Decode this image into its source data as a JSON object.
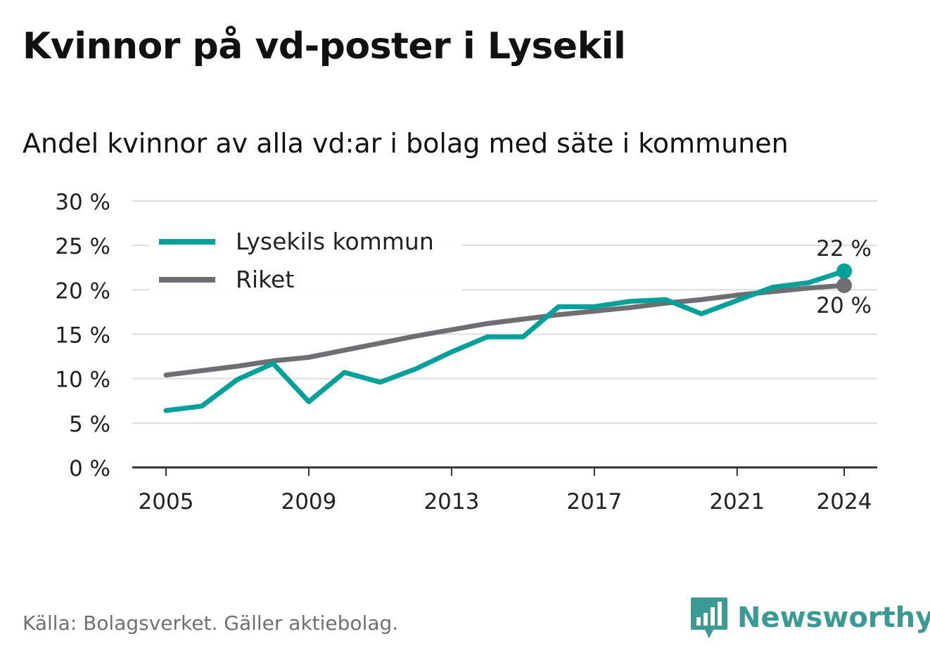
{
  "header": {
    "title": "Kvinnor på vd-poster i Lysekil",
    "subtitle": "Andel kvinnor av alla vd:ar i bolag med säte i kommunen"
  },
  "footer": {
    "source": "Källa: Bolagsverket. Gäller aktiebolag.",
    "brand": "Newsworthy",
    "brand_icon": "bar-chart-speech-bubble-icon",
    "brand_color": "#3a9b94"
  },
  "chart_data": {
    "type": "line",
    "title": "Kvinnor på vd-poster i Lysekil",
    "subtitle": "Andel kvinnor av alla vd:ar i bolag med säte i kommunen",
    "xlabel": "",
    "ylabel": "",
    "x": [
      2005,
      2006,
      2007,
      2008,
      2009,
      2010,
      2011,
      2012,
      2013,
      2014,
      2015,
      2016,
      2017,
      2018,
      2019,
      2020,
      2021,
      2022,
      2023,
      2024
    ],
    "xticks": [
      2005,
      2009,
      2013,
      2017,
      2021,
      2024
    ],
    "xlim": [
      2005,
      2024
    ],
    "ylim": [
      0,
      30
    ],
    "yticks": [
      0,
      5,
      10,
      15,
      20,
      25,
      30
    ],
    "ytick_labels": [
      "0 %",
      "5 %",
      "10 %",
      "15 %",
      "20 %",
      "25 %",
      "30 %"
    ],
    "grid": true,
    "legend_position": "top-left",
    "series": [
      {
        "name": "Lysekils kommun",
        "color": "#00a19a",
        "values": [
          6.4,
          6.9,
          9.9,
          11.7,
          7.4,
          10.7,
          9.6,
          11.1,
          13.0,
          14.7,
          14.7,
          18.1,
          18.1,
          18.7,
          18.9,
          17.3,
          18.8,
          20.3,
          20.8,
          22.1
        ],
        "end_label": "22 %"
      },
      {
        "name": "Riket",
        "color": "#6f6e73",
        "values": [
          10.4,
          10.9,
          11.4,
          12.0,
          12.4,
          13.2,
          14.0,
          14.8,
          15.5,
          16.2,
          16.7,
          17.2,
          17.6,
          18.0,
          18.5,
          18.9,
          19.4,
          19.8,
          20.2,
          20.5
        ],
        "end_label": "20 %"
      }
    ]
  }
}
